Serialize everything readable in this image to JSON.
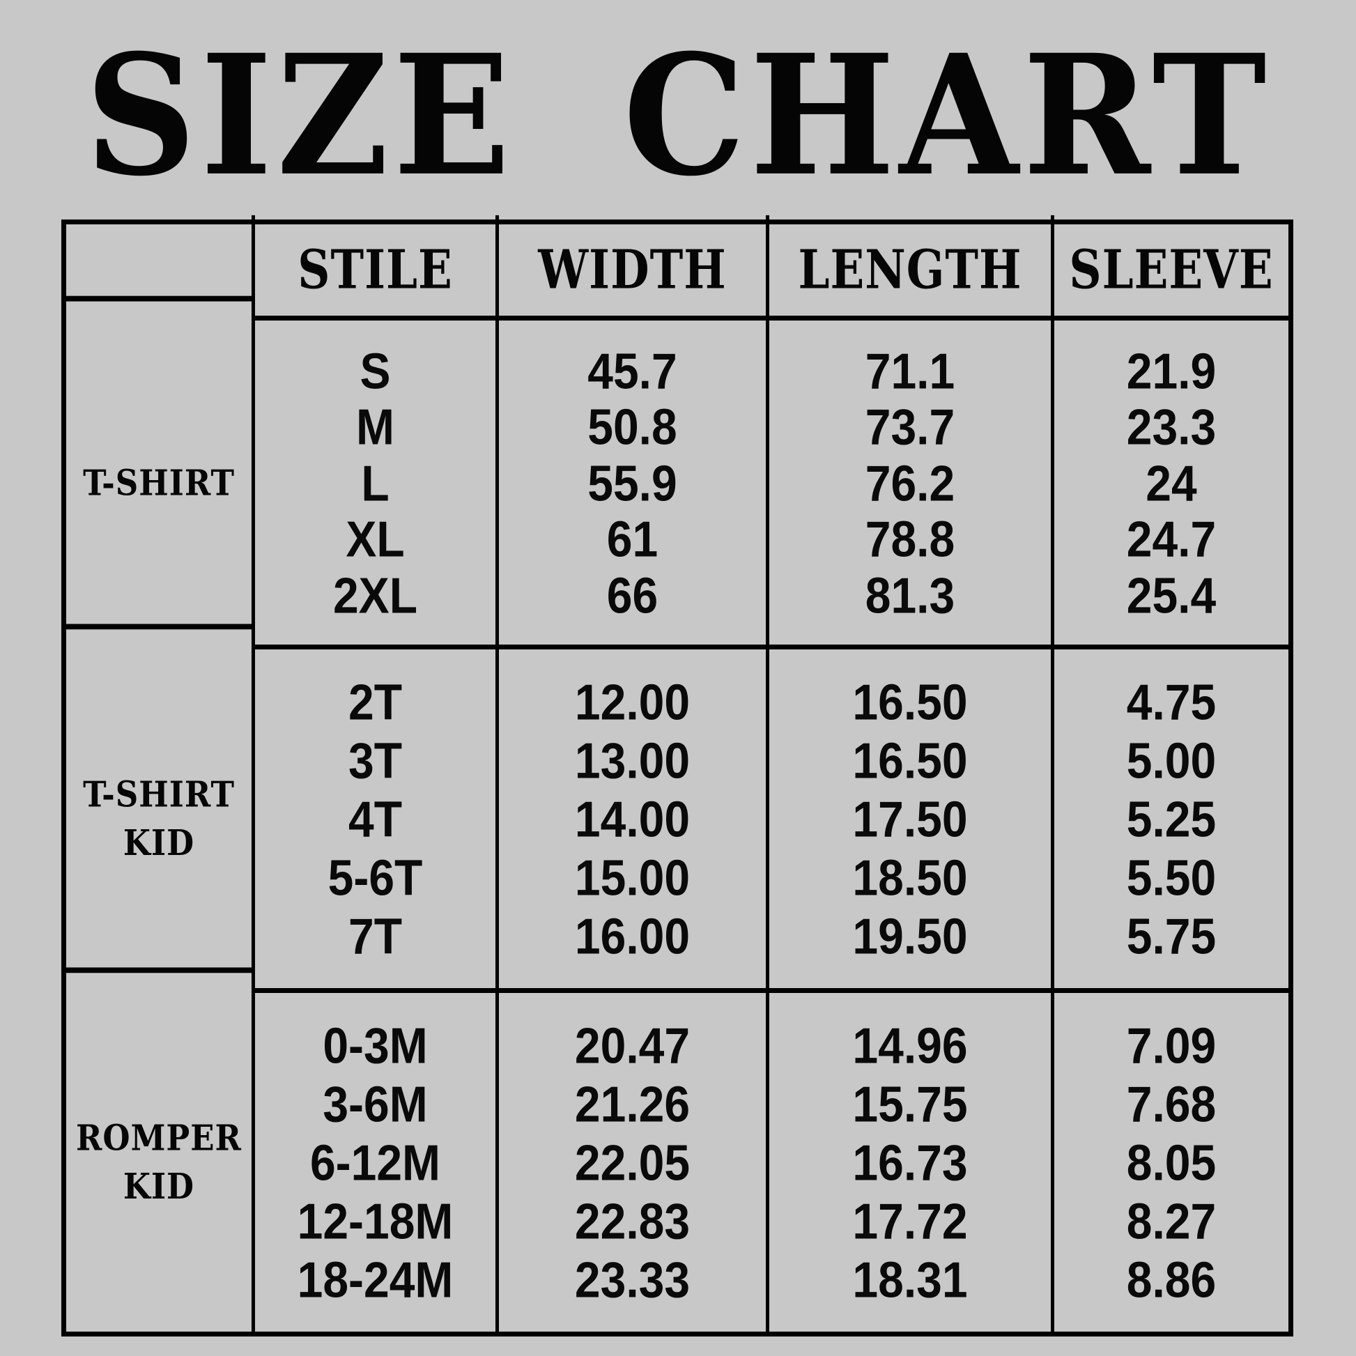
{
  "title": "SIZE CHART",
  "colors": {
    "background": "#c8c8c8",
    "text": "#000000",
    "grid_lines": "#000000"
  },
  "chart_data": {
    "type": "table",
    "title": "SIZE CHART",
    "columns": [
      "",
      "STILE",
      "WIDTH",
      "LENGTH",
      "SLEEVE"
    ],
    "layout": {
      "grid": "on",
      "header_row": true,
      "row_group_labels_column": true
    },
    "sections": [
      {
        "label": "T-SHIRT",
        "stile": [
          "S",
          "M",
          "L",
          "XL",
          "2XL"
        ],
        "width": [
          "45.7",
          "50.8",
          "55.9",
          "61",
          "66"
        ],
        "length": [
          "71.1",
          "73.7",
          "76.2",
          "78.8",
          "81.3"
        ],
        "sleeve": [
          "21.9",
          "23.3",
          "24",
          "24.7",
          "25.4"
        ]
      },
      {
        "label": "T-SHIRT\nKID",
        "stile": [
          "2T",
          "3T",
          "4T",
          "5-6T",
          "7T"
        ],
        "width": [
          "12.00",
          "13.00",
          "14.00",
          "15.00",
          "16.00"
        ],
        "length": [
          "16.50",
          "16.50",
          "17.50",
          "18.50",
          "19.50"
        ],
        "sleeve": [
          "4.75",
          "5.00",
          "5.25",
          "5.50",
          "5.75"
        ]
      },
      {
        "label": "ROMPER\nKID",
        "stile": [
          "0-3M",
          "3-6M",
          "6-12M",
          "12-18M",
          "18-24M"
        ],
        "width": [
          "20.47",
          "21.26",
          "22.05",
          "22.83",
          "23.33"
        ],
        "length": [
          "14.96",
          "15.75",
          "16.73",
          "17.72",
          "18.31"
        ],
        "sleeve": [
          "7.09",
          "7.68",
          "8.05",
          "8.27",
          "8.86"
        ]
      }
    ]
  }
}
